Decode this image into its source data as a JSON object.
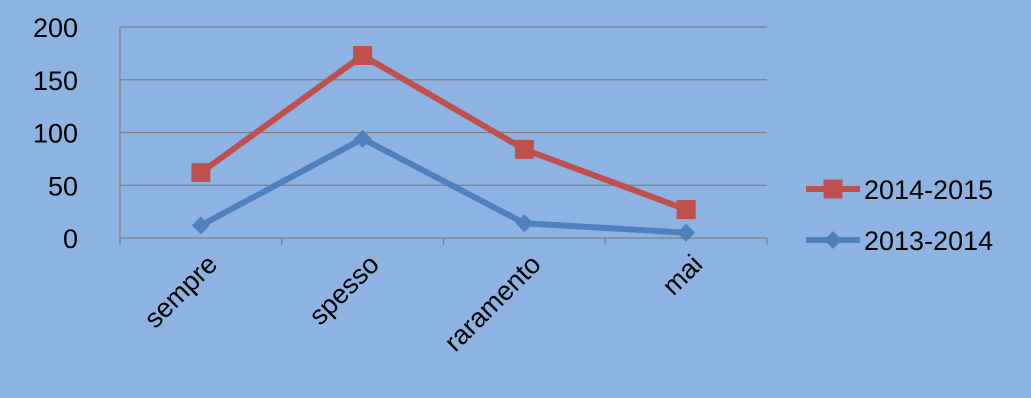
{
  "chart_data": {
    "type": "line",
    "title": "",
    "xlabel": "",
    "ylabel": "",
    "categories": [
      "sempre",
      "spesso",
      "raramento",
      "mai"
    ],
    "ylim": [
      0,
      200
    ],
    "yticks": [
      0,
      50,
      100,
      150,
      200
    ],
    "grid": true,
    "legend_position": "right",
    "series": [
      {
        "name": "2014-2015",
        "values": [
          62,
          173,
          84,
          27
        ],
        "color": "#c0504d",
        "marker": "square"
      },
      {
        "name": "2013-2014",
        "values": [
          12,
          94,
          14,
          5
        ],
        "color": "#4f81bd",
        "marker": "diamond"
      }
    ],
    "background_color": "#8db3e2",
    "grid_color": "#808080"
  }
}
